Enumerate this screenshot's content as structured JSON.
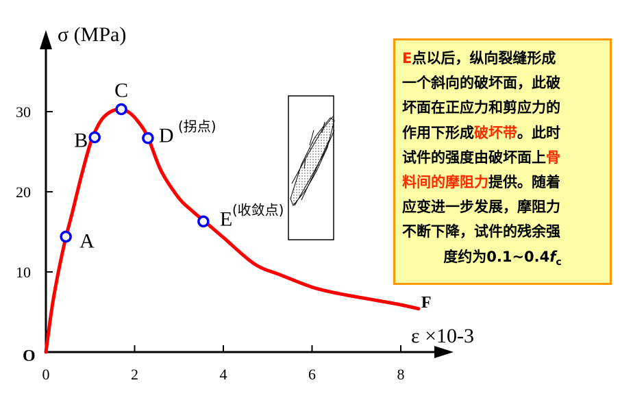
{
  "chart_data": {
    "type": "line",
    "y_axis_label": "σ (MPa)",
    "x_axis_label": "ε ×10-3",
    "origin_label": "O",
    "xlim": [
      0,
      8.5
    ],
    "ylim": [
      0,
      34
    ],
    "x_ticks": [
      0,
      2,
      4,
      6,
      8
    ],
    "y_ticks": [
      10,
      20,
      30
    ],
    "grid": false,
    "line_color": "#ff0000",
    "marker_color": "#0000ff",
    "series": [
      {
        "x": [
          0,
          0.15,
          0.3,
          0.45,
          0.6,
          0.8,
          1.0,
          1.15,
          1.3,
          1.5,
          1.7,
          1.9,
          2.1,
          2.3,
          2.6,
          3.0,
          3.3,
          3.6,
          4.0,
          4.7,
          5.3,
          6.0,
          6.6,
          7.3,
          8.0,
          8.4
        ],
        "y": [
          0,
          6.0,
          10.5,
          14.3,
          17.5,
          22.0,
          26.0,
          28.0,
          29.3,
          30.1,
          30.3,
          29.8,
          28.6,
          26.8,
          22.6,
          19.2,
          17.6,
          16.2,
          14.3,
          11.0,
          9.6,
          8.1,
          7.3,
          6.6,
          5.9,
          5.4
        ]
      }
    ],
    "points": [
      {
        "label": "A",
        "x": 0.45,
        "y": 14.4
      },
      {
        "label": "B",
        "x": 1.1,
        "y": 26.8
      },
      {
        "label": "C",
        "x": 1.7,
        "y": 30.3
      },
      {
        "label": "D",
        "x": 2.3,
        "y": 26.7
      },
      {
        "label": "E",
        "x": 3.55,
        "y": 16.3
      }
    ],
    "end_label": "F",
    "annotations": {
      "D": "(拐点)",
      "E": "(收敛点)"
    }
  },
  "note_box": {
    "lines": [
      [
        {
          "t": "E",
          "red": true
        },
        {
          "t": "点以后，纵向裂缝形成"
        }
      ],
      [
        {
          "t": "一个斜向的破坏面，此破"
        }
      ],
      [
        {
          "t": "坏面在正应力和剪应力的"
        }
      ],
      [
        {
          "t": "作用下形成"
        },
        {
          "t": "破坏带",
          "red": true
        },
        {
          "t": "。此时"
        }
      ],
      [
        {
          "t": "试件的强度由破坏面上"
        },
        {
          "t": "骨",
          "red": true
        }
      ],
      [
        {
          "t": "料间的摩阻力",
          "red": true
        },
        {
          "t": "提供。随着"
        }
      ],
      [
        {
          "t": "应变进一步发展，摩阻力"
        }
      ],
      [
        {
          "t": "不断下降，试件的残余强"
        }
      ],
      [
        {
          "t": "度约为0.1~0.4"
        },
        {
          "t": "f",
          "italic": true
        },
        {
          "t": "c",
          "sub": true
        }
      ]
    ]
  },
  "colors": {
    "note_background": "#fdfda6",
    "note_border": "#ff9900",
    "highlight": "#ff2a00"
  }
}
